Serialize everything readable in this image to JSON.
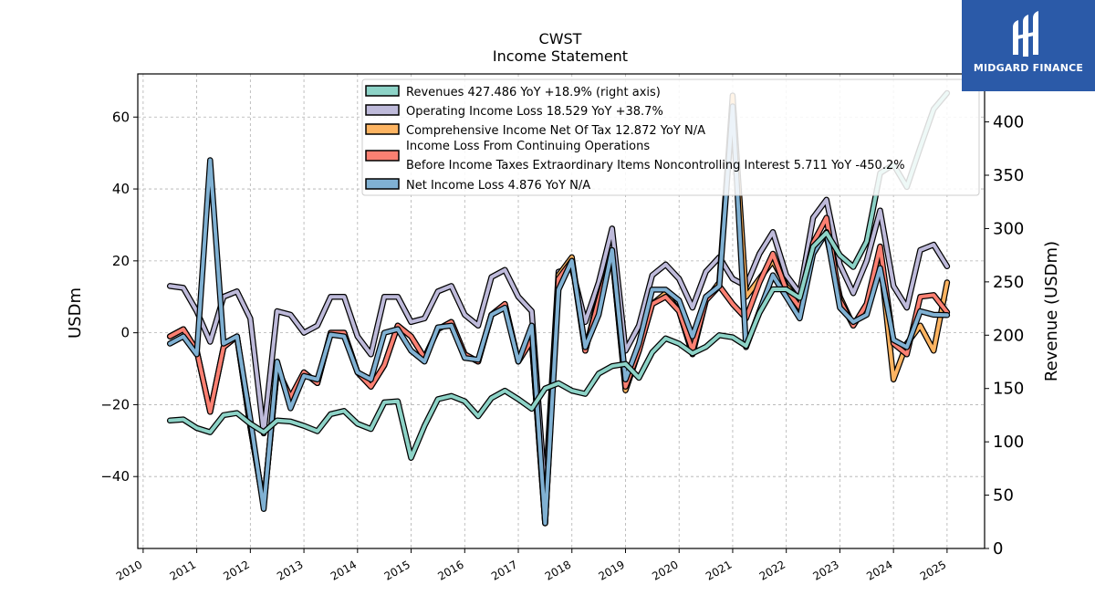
{
  "brand": {
    "name": "MIDGARD FINANCE",
    "icon": "midgard-logo-icon",
    "color": "#2b5aa8"
  },
  "chart_data": {
    "type": "line",
    "title": "CWST",
    "subtitle": "Income Statement",
    "ylabel": "USDm",
    "ylabel_right": "Revenue (USDm)",
    "ylim": [
      -60,
      72
    ],
    "ylim_right": [
      0,
      445
    ],
    "yticks": [
      -40,
      -20,
      0,
      20,
      40,
      60
    ],
    "yticks_right": [
      0,
      50,
      100,
      150,
      200,
      250,
      300,
      350,
      400
    ],
    "xlim": [
      2009.9,
      2025.7
    ],
    "xticks": [
      "2010",
      "2011",
      "2012",
      "2013",
      "2014",
      "2015",
      "2016",
      "2017",
      "2018",
      "2019",
      "2020",
      "2021",
      "2022",
      "2023",
      "2024",
      "2025"
    ],
    "grid": true,
    "legend_position": "top-center",
    "x": [
      2010.5,
      2010.75,
      2011.0,
      2011.25,
      2011.5,
      2011.75,
      2012.0,
      2012.25,
      2012.5,
      2012.75,
      2013.0,
      2013.25,
      2013.5,
      2013.75,
      2014.0,
      2014.25,
      2014.5,
      2014.75,
      2015.0,
      2015.25,
      2015.5,
      2015.75,
      2016.0,
      2016.25,
      2016.5,
      2016.75,
      2017.0,
      2017.25,
      2017.5,
      2017.75,
      2018.0,
      2018.25,
      2018.5,
      2018.75,
      2019.0,
      2019.25,
      2019.5,
      2019.75,
      2020.0,
      2020.25,
      2020.5,
      2020.75,
      2021.0,
      2021.25,
      2021.5,
      2021.75,
      2022.0,
      2022.25,
      2022.5,
      2022.75,
      2023.0,
      2023.25,
      2023.5,
      2023.75,
      2024.0,
      2024.25,
      2024.5,
      2024.75,
      2025.0
    ],
    "series": [
      {
        "name": "Revenues",
        "legend": "Revenues  427.486 YoY +18.9% (right axis)",
        "axis": "right",
        "color": "#8dd3c7",
        "values": [
          120,
          121,
          113,
          109,
          125,
          127,
          117,
          109,
          120,
          119,
          115,
          110,
          126,
          129,
          117,
          112,
          137,
          138,
          85,
          115,
          140,
          143,
          138,
          124,
          141,
          148,
          140,
          131,
          150,
          155,
          148,
          145,
          164,
          171,
          173,
          160,
          184,
          197,
          192,
          183,
          189,
          200,
          198,
          190,
          221,
          243,
          243,
          235,
          283,
          296,
          275,
          264,
          288,
          352,
          360,
          339,
          376,
          412,
          427
        ]
      },
      {
        "name": "Operating Income Loss",
        "legend": "Operating Income Loss  18.529 YoY +38.7%",
        "axis": "left",
        "color": "#bebada",
        "values": [
          13,
          12.5,
          6,
          -2.5,
          10,
          11.5,
          4,
          -28,
          6,
          5,
          0,
          2,
          10,
          10,
          -1,
          -6,
          10,
          10,
          3,
          4,
          11.5,
          13,
          5,
          2,
          15.5,
          17.5,
          10,
          6,
          -45,
          17,
          18,
          3,
          14,
          29,
          -5,
          2,
          16,
          19,
          15,
          7,
          17,
          21,
          15,
          13,
          22,
          28,
          16,
          11,
          32,
          37,
          19,
          11,
          20,
          34,
          13,
          7,
          23,
          24.5,
          18.5
        ]
      },
      {
        "name": "Comprehensive Income Net Of Tax",
        "legend": "Comprehensive Income Net Of Tax  12.872 YoY N/A",
        "axis": "left",
        "color": "#fdb462",
        "values": [
          -1,
          1,
          -5,
          -22,
          -4,
          -1,
          -26,
          -48,
          -10,
          -18,
          -11,
          -14,
          0,
          0,
          -11,
          -15,
          -9,
          2,
          -1,
          -7,
          1,
          3,
          -6,
          -8,
          5,
          8,
          -8,
          -2,
          -53,
          16,
          21,
          -5,
          10,
          22,
          -16,
          -5,
          8,
          11,
          6,
          -6,
          9,
          14,
          66,
          10,
          15,
          20,
          13,
          9,
          25,
          27,
          10,
          2,
          8,
          21,
          -13,
          -3,
          2,
          -5,
          14
        ]
      },
      {
        "name": "Income Loss From Continuing Operations Before Income Taxes Extraordinary Items Noncontrolling Interest",
        "legend_lines": [
          "Income Loss From Continuing Operations",
          "Before Income Taxes Extraordinary Items Noncontrolling Interest  5.711 YoY -450.2%"
        ],
        "axis": "left",
        "color": "#fb8072",
        "values": [
          -1,
          1,
          -5,
          -22,
          -4,
          -1,
          -26,
          -48,
          -10,
          -18,
          -11,
          -14,
          0,
          0,
          -11,
          -15,
          -9,
          2,
          -1,
          -7,
          1,
          3,
          -6,
          -8,
          5,
          8,
          -8,
          -2,
          -53,
          15,
          20,
          -5,
          9,
          22,
          -15,
          -5,
          8,
          10,
          6,
          -5,
          9,
          13,
          8,
          4,
          14,
          22,
          12,
          7,
          25,
          32,
          9,
          2,
          8,
          24,
          -3,
          -6,
          10,
          10.5,
          5.7
        ]
      },
      {
        "name": "Net Income Loss",
        "legend": "Net Income Loss  4.876 YoY N/A",
        "axis": "left",
        "color": "#80b1d3",
        "values": [
          -3,
          -1,
          -6,
          48,
          -3,
          -1,
          -24,
          -49,
          -8,
          -21,
          -12,
          -13,
          -0.5,
          -1,
          -11,
          -13,
          0,
          1,
          -5,
          -8,
          1.5,
          2,
          -7,
          -7.5,
          5,
          7,
          -8,
          2,
          -53,
          12,
          20,
          -4,
          5,
          23,
          -13,
          -3,
          12,
          12,
          9,
          -1,
          10,
          13,
          63,
          -4,
          6,
          16,
          10,
          4,
          22,
          28,
          7,
          3,
          5,
          18,
          -2,
          -4,
          6,
          5,
          4.9
        ]
      }
    ]
  }
}
